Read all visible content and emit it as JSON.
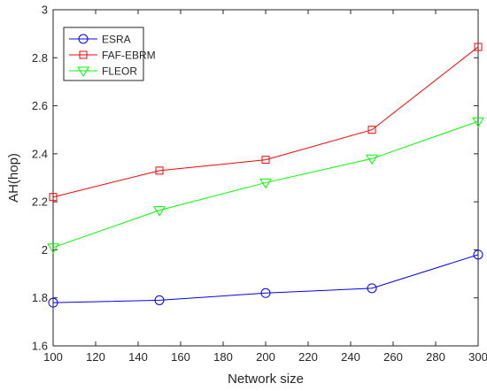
{
  "chart_data": {
    "type": "line",
    "xlabel": "Network size",
    "ylabel": "AH(hop)",
    "xlim": [
      100,
      300
    ],
    "ylim": [
      1.6,
      3.0
    ],
    "xticks": [
      100,
      120,
      140,
      160,
      180,
      200,
      220,
      240,
      260,
      280,
      300
    ],
    "yticks": [
      1.6,
      1.8,
      2.0,
      2.2,
      2.4,
      2.6,
      2.8,
      3.0
    ],
    "ytick_labels": [
      "1.6",
      "1.8",
      "2",
      "2.2",
      "2.4",
      "2.6",
      "2.8",
      "3"
    ],
    "x": [
      100,
      150,
      200,
      250,
      300
    ],
    "grid": false,
    "legend_position": "top-left",
    "series": [
      {
        "name": "ESRA",
        "color": "#0000ff",
        "marker": "circle",
        "values": [
          1.78,
          1.79,
          1.82,
          1.84,
          1.98
        ]
      },
      {
        "name": "FAF-EBRM",
        "color": "#ff0000",
        "marker": "square",
        "values": [
          2.22,
          2.33,
          2.375,
          2.5,
          2.845
        ]
      },
      {
        "name": "FLEOR",
        "color": "#00ff00",
        "marker": "triangle-down",
        "values": [
          2.01,
          2.165,
          2.28,
          2.38,
          2.535
        ]
      }
    ]
  }
}
